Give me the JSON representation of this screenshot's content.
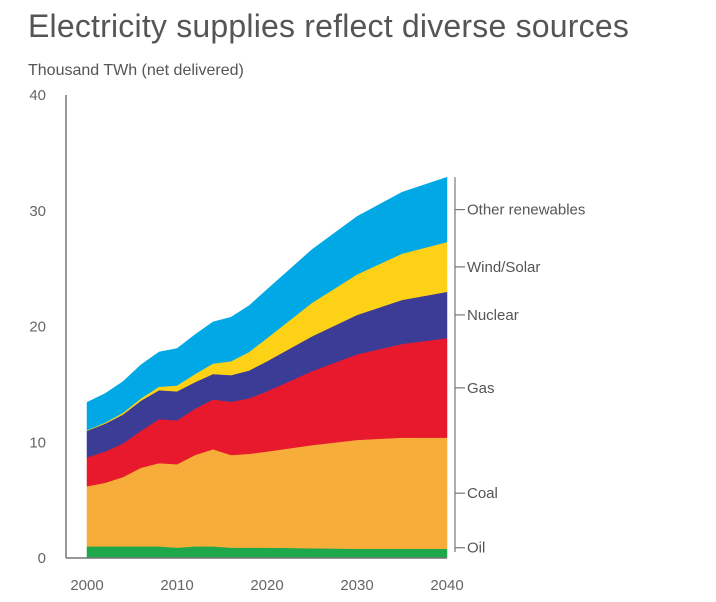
{
  "chart_data": {
    "type": "area",
    "stacked": true,
    "title": "Electricity supplies reflect diverse sources",
    "subtitle": "Thousand TWh (net delivered)",
    "xlabel": "",
    "ylabel": "",
    "xlim": [
      2000,
      2040
    ],
    "ylim": [
      0,
      40
    ],
    "xticks": [
      2000,
      2010,
      2020,
      2030,
      2040
    ],
    "yticks": [
      0,
      10,
      20,
      30,
      40
    ],
    "grid": false,
    "legend": "right-edge labels",
    "x": [
      2000,
      2002,
      2004,
      2006,
      2008,
      2010,
      2012,
      2014,
      2016,
      2018,
      2020,
      2025,
      2030,
      2035,
      2040
    ],
    "series": [
      {
        "name": "Oil",
        "color": "#1fa84b",
        "values": [
          1.0,
          1.0,
          1.0,
          1.0,
          1.0,
          0.9,
          1.0,
          1.0,
          0.9,
          0.9,
          0.9,
          0.85,
          0.8,
          0.8,
          0.8
        ]
      },
      {
        "name": "Coal",
        "color": "#f7ad3a",
        "values": [
          5.2,
          5.5,
          6.0,
          6.8,
          7.2,
          7.2,
          7.9,
          8.4,
          8.0,
          8.1,
          8.3,
          8.9,
          9.4,
          9.6,
          9.6
        ]
      },
      {
        "name": "Gas",
        "color": "#e8192c",
        "values": [
          2.5,
          2.7,
          2.9,
          3.2,
          3.8,
          3.8,
          4.0,
          4.3,
          4.6,
          4.8,
          5.2,
          6.4,
          7.4,
          8.1,
          8.6
        ]
      },
      {
        "name": "Nuclear",
        "color": "#3b3c96",
        "values": [
          2.3,
          2.4,
          2.5,
          2.6,
          2.5,
          2.5,
          2.3,
          2.2,
          2.3,
          2.4,
          2.6,
          3.0,
          3.4,
          3.8,
          4.0
        ]
      },
      {
        "name": "Wind/Solar",
        "color": "#fcd116",
        "values": [
          0.05,
          0.1,
          0.15,
          0.2,
          0.3,
          0.5,
          0.7,
          0.9,
          1.2,
          1.6,
          2.0,
          2.9,
          3.5,
          4.0,
          4.3
        ]
      },
      {
        "name": "Other renewables",
        "color": "#00a9e6",
        "values": [
          2.4,
          2.5,
          2.7,
          2.9,
          3.0,
          3.2,
          3.4,
          3.6,
          3.8,
          4.0,
          4.2,
          4.6,
          5.0,
          5.3,
          5.6
        ]
      }
    ]
  }
}
